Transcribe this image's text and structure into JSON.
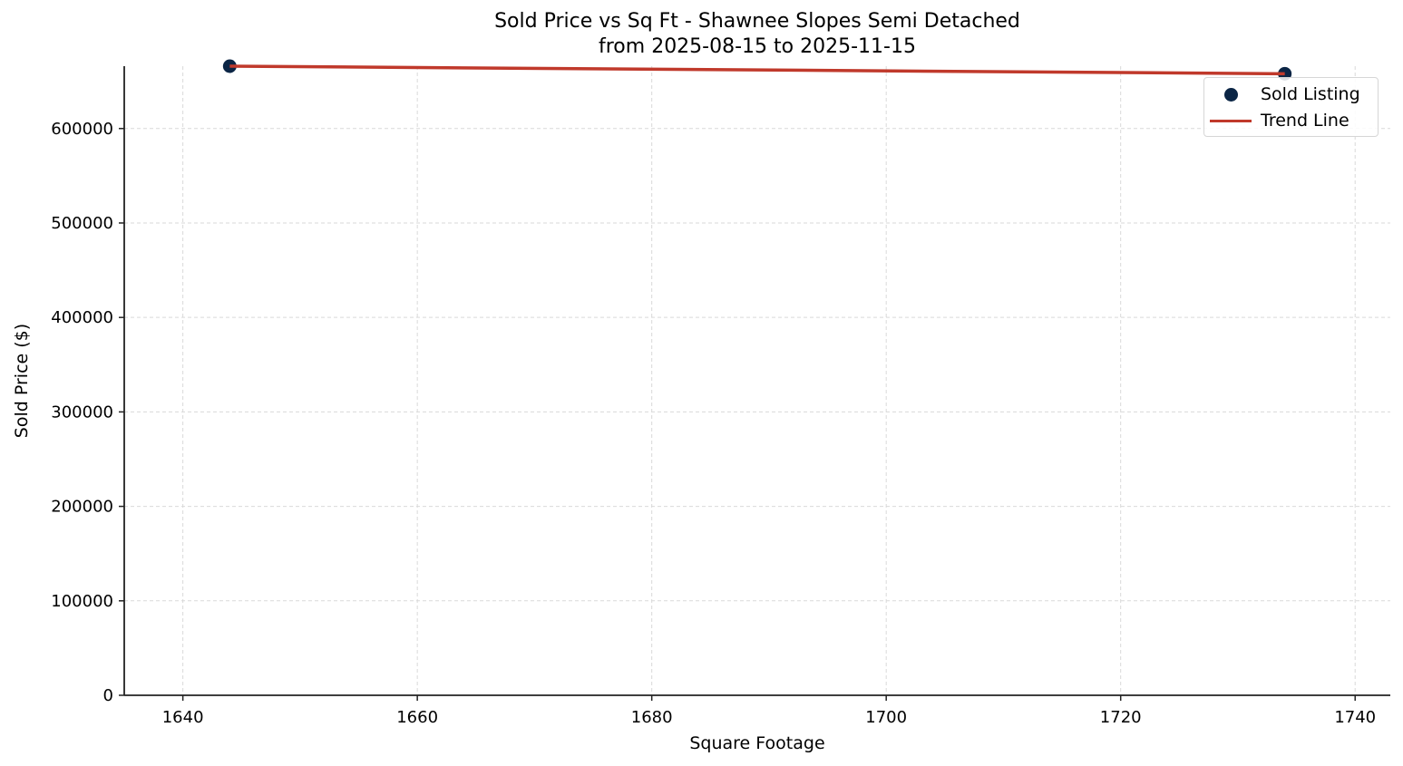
{
  "chart_data": {
    "type": "scatter",
    "title": "Sold Price vs Sq Ft - Shawnee Slopes Semi Detached",
    "subtitle": "from 2025-08-15 to 2025-11-15",
    "xlabel": "Square Footage",
    "ylabel": "Sold Price ($)",
    "xlim": [
      1635,
      1743
    ],
    "ylim": [
      0,
      666000
    ],
    "xticks": [
      1640,
      1660,
      1680,
      1700,
      1720,
      1740
    ],
    "yticks": [
      0,
      100000,
      200000,
      300000,
      400000,
      500000,
      600000
    ],
    "grid": true,
    "legend_position": "upper right",
    "series": [
      {
        "name": "Sold Listing",
        "type": "scatter",
        "color": "#0b2545",
        "points": [
          {
            "x": 1644,
            "y": 666000
          },
          {
            "x": 1734,
            "y": 658000
          }
        ]
      },
      {
        "name": "Trend Line",
        "type": "line",
        "color": "#c0392b",
        "points": [
          {
            "x": 1644,
            "y": 666000
          },
          {
            "x": 1734,
            "y": 658000
          }
        ]
      }
    ]
  },
  "legend": {
    "items": [
      {
        "label": "Sold Listing",
        "icon": "circle-marker"
      },
      {
        "label": "Trend Line",
        "icon": "line-marker"
      }
    ]
  }
}
